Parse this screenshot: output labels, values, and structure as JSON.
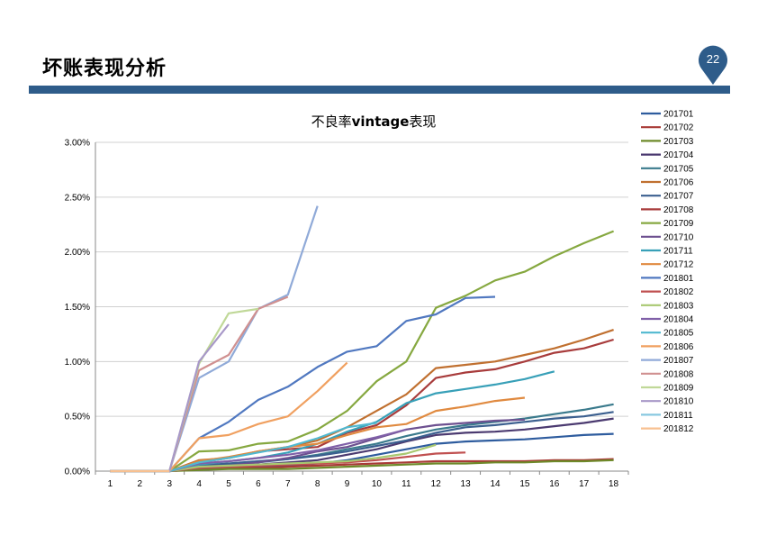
{
  "slide": {
    "title": "坏账表现分析",
    "page_number": "22",
    "accent_color": "#2e5c8a"
  },
  "chart_data": {
    "type": "line",
    "title_prefix": "不良率",
    "title_bold": "vintage",
    "title_suffix": "表现",
    "xlabel": "",
    "ylabel": "",
    "x": [
      1,
      2,
      3,
      4,
      5,
      6,
      7,
      8,
      9,
      10,
      11,
      12,
      13,
      14,
      15,
      16,
      17,
      18
    ],
    "ylim": [
      0,
      3.0
    ],
    "yticks": [
      0,
      0.5,
      1.0,
      1.5,
      2.0,
      2.5,
      3.0
    ],
    "ytick_labels": [
      "0.00%",
      "0.50%",
      "1.00%",
      "1.50%",
      "2.00%",
      "2.50%",
      "3.00%"
    ],
    "grid": "horizontal",
    "legend_position": "right",
    "series": [
      {
        "name": "201701",
        "color": "#2e5c9e",
        "values": [
          0,
          0,
          0,
          0.02,
          0.03,
          0.04,
          0.05,
          0.07,
          0.1,
          0.15,
          0.2,
          0.25,
          0.27,
          0.28,
          0.29,
          0.31,
          0.33,
          0.34
        ]
      },
      {
        "name": "201702",
        "color": "#a83a36",
        "values": [
          0,
          0,
          0,
          0.02,
          0.03,
          0.03,
          0.04,
          0.05,
          0.06,
          0.07,
          0.08,
          0.09,
          0.09,
          0.09,
          0.09,
          0.1,
          0.1,
          0.11
        ]
      },
      {
        "name": "201703",
        "color": "#6e8a2a",
        "values": [
          0,
          0,
          0,
          0.01,
          0.02,
          0.02,
          0.02,
          0.03,
          0.04,
          0.05,
          0.06,
          0.07,
          0.07,
          0.08,
          0.08,
          0.09,
          0.09,
          0.1
        ]
      },
      {
        "name": "201704",
        "color": "#4b3a70",
        "values": [
          0,
          0,
          0,
          0.03,
          0.04,
          0.06,
          0.08,
          0.1,
          0.15,
          0.2,
          0.27,
          0.33,
          0.35,
          0.36,
          0.38,
          0.41,
          0.44,
          0.48
        ]
      },
      {
        "name": "201705",
        "color": "#3a7a8c",
        "values": [
          0,
          0,
          0,
          0.04,
          0.06,
          0.08,
          0.11,
          0.15,
          0.2,
          0.25,
          0.32,
          0.38,
          0.42,
          0.45,
          0.48,
          0.52,
          0.56,
          0.61
        ]
      },
      {
        "name": "201706",
        "color": "#c07030",
        "values": [
          0,
          0,
          0,
          0.1,
          0.12,
          0.18,
          0.22,
          0.28,
          0.4,
          0.55,
          0.7,
          0.94,
          0.97,
          1.0,
          1.06,
          1.12,
          1.2,
          1.29
        ]
      },
      {
        "name": "201707",
        "color": "#3b5f8f",
        "values": [
          0,
          0,
          0,
          0.05,
          0.07,
          0.09,
          0.11,
          0.14,
          0.18,
          0.23,
          0.28,
          0.35,
          0.4,
          0.42,
          0.45,
          0.48,
          0.5,
          0.54
        ]
      },
      {
        "name": "201708",
        "color": "#a83c3c",
        "values": [
          0,
          0,
          0,
          0.08,
          0.12,
          0.18,
          0.2,
          0.22,
          0.35,
          0.42,
          0.6,
          0.85,
          0.9,
          0.93,
          1.0,
          1.08,
          1.12,
          1.2
        ]
      },
      {
        "name": "201709",
        "color": "#86a840",
        "values": [
          0,
          0,
          0,
          0.18,
          0.19,
          0.25,
          0.27,
          0.38,
          0.55,
          0.82,
          1.0,
          1.49,
          1.6,
          1.74,
          1.82,
          1.96,
          2.08,
          2.19
        ]
      },
      {
        "name": "201710",
        "color": "#6d5090",
        "values": [
          0,
          0,
          0,
          0.04,
          0.05,
          0.08,
          0.12,
          0.18,
          0.22,
          0.3,
          0.38,
          0.42,
          0.44,
          0.46,
          0.47,
          null,
          null,
          null
        ]
      },
      {
        "name": "201711",
        "color": "#38a0b8",
        "values": [
          0,
          0,
          0,
          0.06,
          0.09,
          0.12,
          0.17,
          0.25,
          0.36,
          0.45,
          0.62,
          0.71,
          0.75,
          0.79,
          0.84,
          0.91,
          null,
          null
        ]
      },
      {
        "name": "201712",
        "color": "#e08a40",
        "values": [
          0,
          0,
          0,
          0.09,
          0.13,
          0.18,
          0.22,
          0.25,
          0.33,
          0.4,
          0.43,
          0.55,
          0.59,
          0.64,
          0.67,
          null,
          null,
          null
        ]
      },
      {
        "name": "201801",
        "color": "#5078c0",
        "values": [
          0,
          0,
          0,
          0.3,
          0.45,
          0.65,
          0.77,
          0.95,
          1.09,
          1.14,
          1.37,
          1.43,
          1.58,
          1.59,
          null,
          null,
          null,
          null
        ]
      },
      {
        "name": "201802",
        "color": "#c05050",
        "values": [
          0,
          0,
          0,
          0.03,
          0.04,
          0.05,
          0.06,
          0.07,
          0.08,
          0.1,
          0.13,
          0.16,
          0.17,
          null,
          null,
          null,
          null,
          null
        ]
      },
      {
        "name": "201803",
        "color": "#a8c870",
        "values": [
          0,
          0,
          0,
          0.04,
          0.05,
          0.06,
          0.07,
          0.08,
          0.09,
          0.12,
          0.16,
          0.24,
          null,
          null,
          null,
          null,
          null,
          null
        ]
      },
      {
        "name": "201804",
        "color": "#8060a8",
        "values": [
          0,
          0,
          0,
          0.07,
          0.09,
          0.12,
          0.15,
          0.19,
          0.25,
          0.31,
          0.38,
          null,
          null,
          null,
          null,
          null,
          null,
          null
        ]
      },
      {
        "name": "201805",
        "color": "#50b8d0",
        "values": [
          0,
          0,
          0,
          0.08,
          0.12,
          0.17,
          0.22,
          0.3,
          0.4,
          0.44,
          null,
          null,
          null,
          null,
          null,
          null,
          null,
          null
        ]
      },
      {
        "name": "201806",
        "color": "#f0a060",
        "values": [
          0,
          0,
          0,
          0.3,
          0.33,
          0.43,
          0.5,
          0.73,
          0.99,
          null,
          null,
          null,
          null,
          null,
          null,
          null,
          null,
          null
        ]
      },
      {
        "name": "201807",
        "color": "#90aad8",
        "values": [
          0,
          0,
          0,
          0.85,
          1.0,
          1.48,
          1.61,
          2.42,
          null,
          null,
          null,
          null,
          null,
          null,
          null,
          null,
          null,
          null
        ]
      },
      {
        "name": "201808",
        "color": "#d09090",
        "values": [
          0,
          0,
          0,
          0.92,
          1.06,
          1.48,
          1.59,
          null,
          null,
          null,
          null,
          null,
          null,
          null,
          null,
          null,
          null,
          null
        ]
      },
      {
        "name": "201809",
        "color": "#c0d898",
        "values": [
          0,
          0,
          0,
          0.98,
          1.44,
          1.48,
          null,
          null,
          null,
          null,
          null,
          null,
          null,
          null,
          null,
          null,
          null,
          null
        ]
      },
      {
        "name": "201810",
        "color": "#a898c8",
        "values": [
          0,
          0,
          0,
          1.0,
          1.34,
          null,
          null,
          null,
          null,
          null,
          null,
          null,
          null,
          null,
          null,
          null,
          null,
          null
        ]
      },
      {
        "name": "201811",
        "color": "#88c8e0",
        "values": [
          0,
          0,
          0,
          null,
          null,
          null,
          null,
          null,
          null,
          null,
          null,
          null,
          null,
          null,
          null,
          null,
          null,
          null
        ]
      },
      {
        "name": "201812",
        "color": "#f8c090",
        "values": [
          0,
          0,
          0,
          null,
          null,
          null,
          null,
          null,
          null,
          null,
          null,
          null,
          null,
          null,
          null,
          null,
          null,
          null
        ]
      }
    ]
  }
}
